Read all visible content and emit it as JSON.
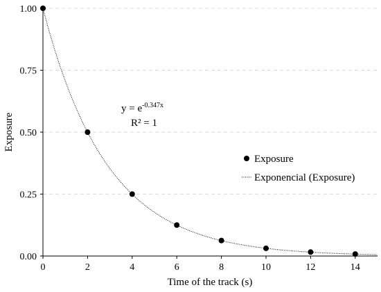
{
  "chart_data": {
    "type": "scatter",
    "title": "",
    "xlabel": "Time of the track (s)",
    "ylabel": "Exposure",
    "xlim": [
      0,
      15
    ],
    "ylim": [
      0,
      1
    ],
    "x_ticks": [
      "0",
      "2",
      "4",
      "6",
      "8",
      "10",
      "12",
      "14"
    ],
    "y_ticks": [
      "0.00",
      "0.25",
      "0.50",
      "0.75",
      "1.00"
    ],
    "grid": "horizontal dashed",
    "legend_position": "center-right",
    "series": [
      {
        "name": "Exposure",
        "marker": "filled-circle",
        "color": "#000000",
        "x": [
          0,
          2,
          4,
          6,
          8,
          10,
          12,
          14
        ],
        "y": [
          1.0,
          0.5,
          0.25,
          0.125,
          0.0625,
          0.031,
          0.016,
          0.008
        ]
      }
    ],
    "trendline": {
      "name": "Exponencial (Exposure)",
      "style": "dotted",
      "color": "#000000",
      "coefficient": -0.347
    },
    "annotation": {
      "equation_base": "y = e",
      "equation_exponent": "-0.347x",
      "r_squared": "R² = 1"
    }
  }
}
